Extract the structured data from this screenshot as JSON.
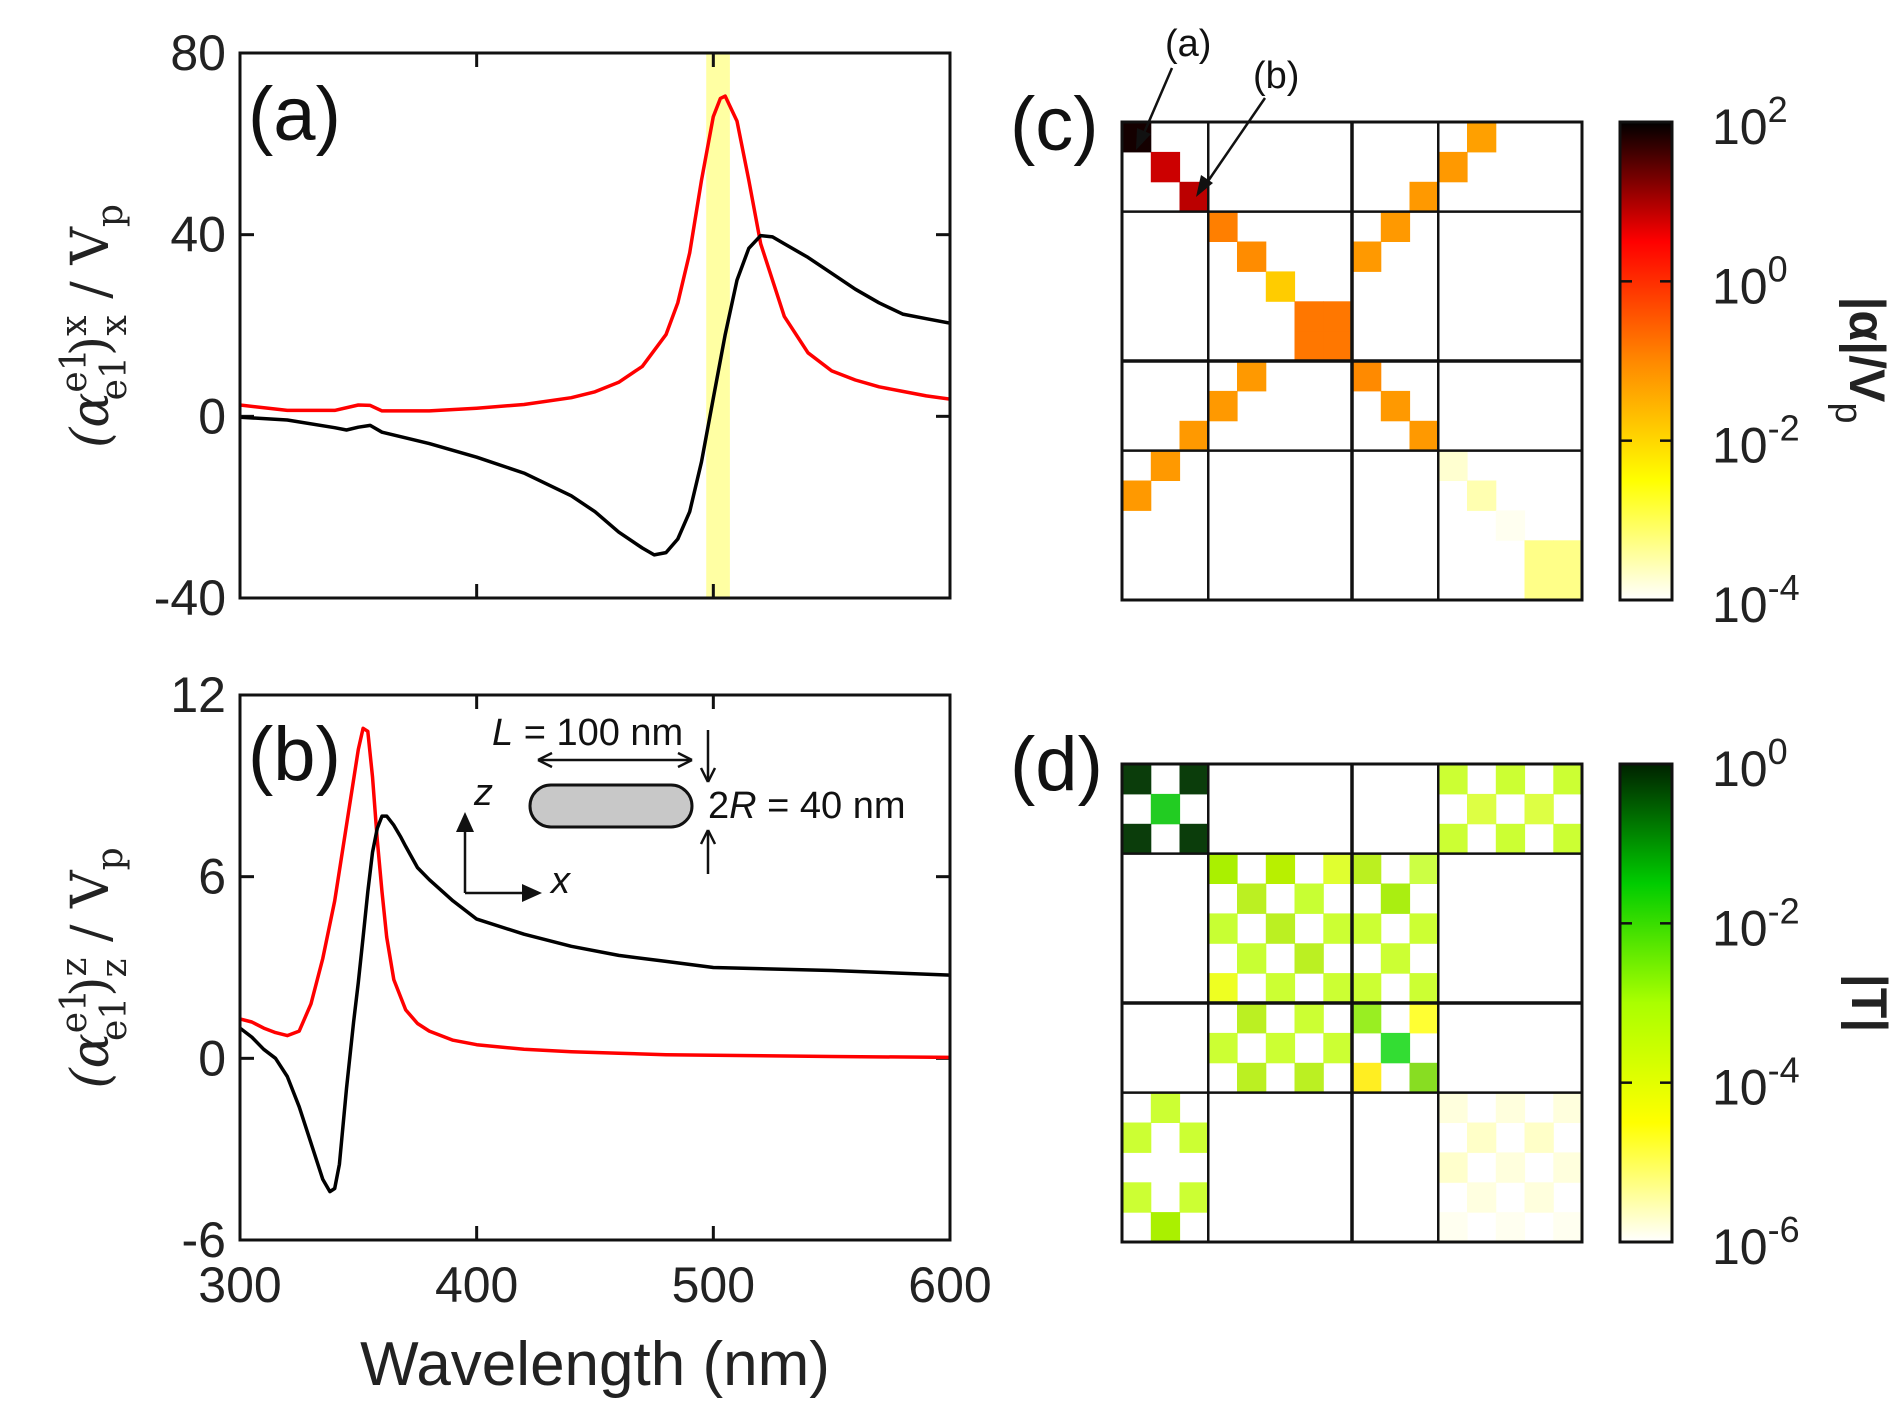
{
  "colors": {
    "red_series": "#ff0000",
    "black_series": "#000000",
    "highlight": "#ffff66"
  },
  "chart_data": [
    {
      "id": "a",
      "type": "line",
      "panel_label": "(a)",
      "ylabel_parts": {
        "alpha": "(α",
        "sup": "e1",
        "sub": "e1",
        "close": ")",
        "comp_sup": "x",
        "comp_sub": "x",
        "tail": " / V",
        "tail_sub": "p"
      },
      "xlim": [
        300,
        600
      ],
      "ylim": [
        -40,
        80
      ],
      "yticks": [
        80,
        40,
        0,
        -40
      ],
      "highlight_band": [
        497,
        507
      ],
      "series": [
        {
          "name": "red",
          "color": "#ff0000",
          "x": [
            300,
            320,
            340,
            350,
            355,
            360,
            380,
            400,
            420,
            440,
            450,
            460,
            470,
            480,
            485,
            490,
            495,
            500,
            503,
            505,
            510,
            515,
            520,
            530,
            540,
            550,
            560,
            570,
            580,
            590,
            600
          ],
          "y": [
            2.5,
            1.3,
            1.3,
            2.5,
            2.4,
            1.2,
            1.2,
            1.8,
            2.6,
            4.1,
            5.4,
            7.5,
            11.0,
            18.0,
            25.0,
            36.0,
            52.0,
            66.0,
            70.0,
            70.5,
            65.0,
            52.0,
            38.0,
            22.0,
            14.0,
            10.0,
            8.0,
            6.5,
            5.5,
            4.5,
            3.8
          ]
        },
        {
          "name": "black",
          "color": "#000000",
          "x": [
            300,
            320,
            340,
            345,
            350,
            355,
            360,
            380,
            400,
            420,
            440,
            450,
            460,
            470,
            475,
            480,
            485,
            490,
            495,
            500,
            505,
            510,
            515,
            520,
            525,
            530,
            540,
            550,
            560,
            570,
            580,
            590,
            600
          ],
          "y": [
            -0.2,
            -0.8,
            -2.5,
            -3.0,
            -2.4,
            -2.0,
            -3.5,
            -6.0,
            -9.0,
            -12.5,
            -17.5,
            -21.0,
            -25.5,
            -29.0,
            -30.5,
            -30.0,
            -27.0,
            -21.0,
            -10.0,
            4.0,
            18.0,
            30.0,
            37.0,
            39.8,
            39.5,
            38.0,
            35.0,
            31.5,
            28.0,
            25.0,
            22.5,
            21.5,
            20.5
          ]
        }
      ]
    },
    {
      "id": "b",
      "type": "line",
      "panel_label": "(b)",
      "ylabel_parts": {
        "alpha": "(α",
        "sup": "e1",
        "sub": "e1",
        "close": ")",
        "comp_sup": "z",
        "comp_sub": "z",
        "tail": " / V",
        "tail_sub": "p"
      },
      "xlabel": "Wavelength (nm)",
      "xlim": [
        300,
        600
      ],
      "ylim": [
        -6,
        12
      ],
      "xticks": [
        300,
        400,
        500,
        600
      ],
      "yticks": [
        12,
        6,
        0,
        -6
      ],
      "inset": {
        "z_label": "z",
        "x_label": "x",
        "length_label_italic": "L",
        "length_label_rest": " = 100 nm",
        "radius_label_pre": "2",
        "radius_label_italic": "R",
        "radius_label_rest": " = 40 nm"
      },
      "series": [
        {
          "name": "red",
          "color": "#ff0000",
          "x": [
            300,
            305,
            310,
            315,
            320,
            325,
            330,
            335,
            340,
            345,
            350,
            352,
            354,
            356,
            358,
            360,
            362,
            365,
            370,
            375,
            380,
            390,
            400,
            420,
            440,
            460,
            480,
            500,
            550,
            600
          ],
          "y": [
            1.3,
            1.2,
            1.0,
            0.85,
            0.75,
            0.9,
            1.8,
            3.3,
            5.2,
            7.7,
            10.2,
            10.9,
            10.8,
            9.3,
            7.2,
            5.5,
            4.0,
            2.6,
            1.6,
            1.15,
            0.9,
            0.6,
            0.45,
            0.3,
            0.22,
            0.17,
            0.12,
            0.1,
            0.06,
            0.03
          ]
        },
        {
          "name": "black",
          "color": "#000000",
          "x": [
            300,
            305,
            310,
            315,
            320,
            325,
            330,
            335,
            338,
            340,
            342,
            345,
            348,
            350,
            352,
            354,
            356,
            358,
            360,
            362,
            365,
            368,
            370,
            375,
            380,
            390,
            400,
            420,
            440,
            460,
            480,
            500,
            550,
            600
          ],
          "y": [
            1.0,
            0.7,
            0.3,
            0.0,
            -0.6,
            -1.6,
            -2.8,
            -4.0,
            -4.4,
            -4.3,
            -3.5,
            -1.0,
            1.2,
            2.5,
            4.0,
            5.5,
            6.8,
            7.6,
            8.0,
            8.0,
            7.7,
            7.3,
            7.0,
            6.3,
            5.9,
            5.2,
            4.6,
            4.1,
            3.7,
            3.4,
            3.2,
            3.0,
            2.9,
            2.75
          ]
        }
      ]
    },
    {
      "id": "c",
      "type": "heatmap",
      "panel_label": "(c)",
      "annotations": [
        "(a)",
        "(b)"
      ],
      "grid_size": 16,
      "block_lines": [
        3,
        8,
        11
      ],
      "colorbar": {
        "label_main": "|α|/V",
        "label_sub": "p",
        "scale": "log",
        "exponents": [
          2,
          0,
          -2,
          -4
        ],
        "base": "10",
        "stops": [
          "#000000",
          "#ff0000",
          "#ff8800",
          "#ffff00",
          "#ffffff"
        ]
      },
      "cells": [
        [
          0,
          0,
          "#140000"
        ],
        [
          1,
          1,
          "#cc0000"
        ],
        [
          2,
          2,
          "#bb0000"
        ],
        [
          3,
          3,
          "#ff7f00"
        ],
        [
          4,
          4,
          "#ff8c00"
        ],
        [
          5,
          5,
          "#ffcc00"
        ],
        [
          6,
          6,
          "#ff7700"
        ],
        [
          6,
          7,
          "#ff7700"
        ],
        [
          7,
          6,
          "#ff7700"
        ],
        [
          7,
          7,
          "#ff7700"
        ],
        [
          8,
          8,
          "#ff8a00"
        ],
        [
          9,
          9,
          "#ff9900"
        ],
        [
          10,
          10,
          "#ff9900"
        ],
        [
          0,
          12,
          "#ffa000"
        ],
        [
          1,
          11,
          "#ff9900"
        ],
        [
          2,
          10,
          "#ff9900"
        ],
        [
          3,
          9,
          "#ff9900"
        ],
        [
          4,
          8,
          "#ff9900"
        ],
        [
          8,
          4,
          "#ff9900"
        ],
        [
          9,
          3,
          "#ff9900"
        ],
        [
          10,
          2,
          "#ff9900"
        ],
        [
          11,
          1,
          "#ff9900"
        ],
        [
          12,
          0,
          "#ff9900"
        ],
        [
          11,
          11,
          "#ffffd0"
        ],
        [
          12,
          12,
          "#ffffb0"
        ],
        [
          13,
          13,
          "#fffff0"
        ],
        [
          14,
          14,
          "#ffff88"
        ],
        [
          14,
          15,
          "#ffff88"
        ],
        [
          15,
          14,
          "#ffff88"
        ],
        [
          15,
          15,
          "#ffff88"
        ]
      ]
    },
    {
      "id": "d",
      "type": "heatmap",
      "panel_label": "(d)",
      "grid_size": 16,
      "block_lines": [
        3,
        8,
        11
      ],
      "colorbar": {
        "label_main": "|T|",
        "scale": "log",
        "exponents": [
          0,
          -2,
          -4,
          -6
        ],
        "base": "10",
        "stops": [
          "#002200",
          "#00cc00",
          "#aaff00",
          "#ffff00",
          "#ffffff"
        ]
      },
      "cells": [
        [
          0,
          0,
          "#0b3d0b"
        ],
        [
          0,
          2,
          "#0b3d0b"
        ],
        [
          1,
          1,
          "#22cc22"
        ],
        [
          2,
          0,
          "#0b3d0b"
        ],
        [
          2,
          2,
          "#0b3d0b"
        ],
        [
          0,
          11,
          "#ccff33"
        ],
        [
          0,
          13,
          "#ccff33"
        ],
        [
          0,
          15,
          "#ccff33"
        ],
        [
          1,
          12,
          "#ddff44"
        ],
        [
          1,
          14,
          "#ddff44"
        ],
        [
          2,
          11,
          "#ccff33"
        ],
        [
          2,
          13,
          "#ccff33"
        ],
        [
          2,
          15,
          "#ccff33"
        ],
        [
          3,
          3,
          "#aaf000"
        ],
        [
          3,
          5,
          "#b8f000"
        ],
        [
          3,
          7,
          "#e0ff30"
        ],
        [
          3,
          8,
          "#bbf020"
        ],
        [
          3,
          10,
          "#ccff44"
        ],
        [
          4,
          4,
          "#bbf022"
        ],
        [
          4,
          6,
          "#c8ff33"
        ],
        [
          4,
          9,
          "#aaee11"
        ],
        [
          5,
          3,
          "#c8ff33"
        ],
        [
          5,
          5,
          "#bbf022"
        ],
        [
          5,
          7,
          "#ccff33"
        ],
        [
          5,
          8,
          "#ccff33"
        ],
        [
          5,
          10,
          "#ccff33"
        ],
        [
          6,
          4,
          "#c8ff33"
        ],
        [
          6,
          6,
          "#bbf022"
        ],
        [
          6,
          9,
          "#ccff33"
        ],
        [
          7,
          3,
          "#eeff22"
        ],
        [
          7,
          5,
          "#ccff33"
        ],
        [
          7,
          7,
          "#ccff33"
        ],
        [
          7,
          8,
          "#ccff33"
        ],
        [
          7,
          10,
          "#ccff33"
        ],
        [
          8,
          4,
          "#bbf022"
        ],
        [
          8,
          6,
          "#ccff33"
        ],
        [
          8,
          8,
          "#99ee22"
        ],
        [
          8,
          10,
          "#ffff33"
        ],
        [
          9,
          3,
          "#ccff33"
        ],
        [
          9,
          5,
          "#ccff33"
        ],
        [
          9,
          7,
          "#ccff33"
        ],
        [
          9,
          9,
          "#33dd33"
        ],
        [
          10,
          4,
          "#bbf022"
        ],
        [
          10,
          6,
          "#bbf022"
        ],
        [
          10,
          8,
          "#ffee22"
        ],
        [
          10,
          10,
          "#88dd22"
        ],
        [
          11,
          1,
          "#ccff33"
        ],
        [
          12,
          0,
          "#ccff33"
        ],
        [
          12,
          2,
          "#ccff33"
        ],
        [
          14,
          0,
          "#ccff33"
        ],
        [
          14,
          2,
          "#ccff33"
        ],
        [
          15,
          1,
          "#aaf000"
        ],
        [
          11,
          11,
          "#ffffdd"
        ],
        [
          11,
          13,
          "#ffffdd"
        ],
        [
          11,
          15,
          "#ffffdd"
        ],
        [
          12,
          12,
          "#ffffc8"
        ],
        [
          12,
          14,
          "#ffffc8"
        ],
        [
          13,
          11,
          "#ffffcc"
        ],
        [
          13,
          13,
          "#ffffdd"
        ],
        [
          13,
          15,
          "#ffffdd"
        ],
        [
          14,
          12,
          "#ffffe0"
        ],
        [
          14,
          14,
          "#ffffdd"
        ],
        [
          15,
          11,
          "#fffff0"
        ],
        [
          15,
          13,
          "#fffff0"
        ],
        [
          15,
          15,
          "#fffff0"
        ]
      ]
    }
  ]
}
